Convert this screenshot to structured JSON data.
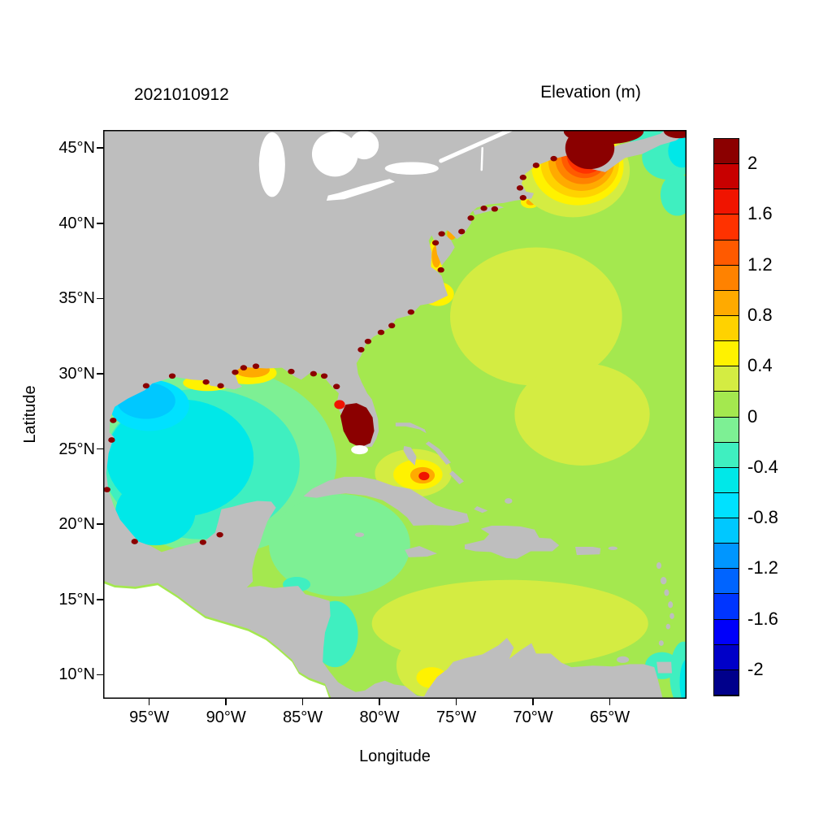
{
  "title": "2021010912",
  "colorbar_title": "Elevation (m)",
  "axes": {
    "xlabel": "Longitude",
    "ylabel": "Latitude",
    "x_ticks": [
      {
        "label": "95°W",
        "lon": -95
      },
      {
        "label": "90°W",
        "lon": -90
      },
      {
        "label": "85°W",
        "lon": -85
      },
      {
        "label": "80°W",
        "lon": -80
      },
      {
        "label": "75°W",
        "lon": -75
      },
      {
        "label": "70°W",
        "lon": -70
      },
      {
        "label": "65°W",
        "lon": -65
      }
    ],
    "y_ticks": [
      {
        "label": "45°N",
        "lat": 45
      },
      {
        "label": "40°N",
        "lat": 40
      },
      {
        "label": "35°N",
        "lat": 35
      },
      {
        "label": "30°N",
        "lat": 30
      },
      {
        "label": "25°N",
        "lat": 25
      },
      {
        "label": "20°N",
        "lat": 20
      },
      {
        "label": "15°N",
        "lat": 15
      },
      {
        "label": "10°N",
        "lat": 10
      }
    ]
  },
  "colorbar": {
    "min": -2.2,
    "max": 2.2,
    "band_step": 0.2,
    "colors_bottom_to_top": [
      "#00008B",
      "#0000C8",
      "#0000FA",
      "#0035FF",
      "#0064FF",
      "#0096FF",
      "#00C8FF",
      "#00E1FF",
      "#00E8E8",
      "#3FEFC0",
      "#7DF094",
      "#A4E84F",
      "#D4EC42",
      "#FFF200",
      "#FFD200",
      "#FFAA00",
      "#FF8200",
      "#FF5A00",
      "#FF3200",
      "#F01400",
      "#C80000",
      "#8B0000"
    ],
    "tick_labels": [
      {
        "label": "2",
        "value": 2.0
      },
      {
        "label": "1.6",
        "value": 1.6
      },
      {
        "label": "1.2",
        "value": 1.2
      },
      {
        "label": "0.8",
        "value": 0.8
      },
      {
        "label": "0.4",
        "value": 0.4
      },
      {
        "label": "0",
        "value": 0
      },
      {
        "label": "-0.4",
        "value": -0.4
      },
      {
        "label": "-0.8",
        "value": -0.8
      },
      {
        "label": "-1.2",
        "value": -1.2
      },
      {
        "label": "-1.6",
        "value": -1.6
      },
      {
        "label": "-2",
        "value": -2.0
      }
    ]
  },
  "chart_data": {
    "type": "heatmap",
    "title": "2021010912",
    "variable": "Elevation",
    "units": "m",
    "xlabel": "Longitude",
    "ylabel": "Latitude",
    "lon_range": [
      -98,
      -60
    ],
    "lat_range": [
      8.4,
      46.2
    ],
    "level_min": -2.2,
    "level_max": 2.2,
    "level_step": 0.2,
    "background_value_m": 0.1,
    "land_color": "#BEBEBE",
    "lake_color": "#FFFFFF",
    "no_data_color": "#FFFFFF",
    "regions_under": [
      {
        "name": "caribbean-yellow-band",
        "lon": -71.5,
        "lat": 13.4,
        "rx": 9.0,
        "ry": 2.9,
        "v": 0.3
      },
      {
        "name": "colombia-basin-yellow",
        "lon": -76.3,
        "lat": 10.6,
        "rx": 2.6,
        "ry": 2.2,
        "v": 0.3
      },
      {
        "name": "colombia-coast-yellow",
        "lon": -76.6,
        "lat": 9.8,
        "rx": 1.0,
        "ry": 0.7,
        "v": 0.5
      },
      {
        "name": "midatlantic-yellow",
        "lon": -69.8,
        "lat": 33.8,
        "rx": 5.6,
        "ry": 4.6,
        "v": 0.3
      },
      {
        "name": "sargasso-yellow",
        "lon": -66.8,
        "lat": 27.3,
        "rx": 4.4,
        "ry": 3.4,
        "v": 0.3
      },
      {
        "name": "gulf-light-green-rim",
        "lon": -90.6,
        "lat": 24.2,
        "rx": 7.8,
        "ry": 6.2,
        "v": -0.1
      },
      {
        "name": "nw-caribbean-light-green",
        "lon": -82.6,
        "lat": 18.6,
        "rx": 4.6,
        "ry": 3.4,
        "v": -0.1
      },
      {
        "name": "gulf-turquoise",
        "lon": -91.6,
        "lat": 24.0,
        "rx": 6.4,
        "ry": 5.0,
        "v": -0.3
      },
      {
        "name": "gulf-cyan",
        "lon": -93.0,
        "lat": 24.4,
        "rx": 4.8,
        "ry": 3.9,
        "v": -0.5
      },
      {
        "name": "campeche-cyan",
        "lon": -94.6,
        "lat": 20.8,
        "rx": 2.6,
        "ry": 2.2,
        "v": -0.5
      },
      {
        "name": "texas-shelf-blue-ring",
        "lon": -95.0,
        "lat": 27.9,
        "rx": 2.6,
        "ry": 1.7,
        "v": -0.7
      },
      {
        "name": "texas-shelf-blue",
        "lon": -95.2,
        "lat": 28.2,
        "rx": 1.9,
        "ry": 1.2,
        "v": -0.9
      },
      {
        "name": "louisiana-yellow-fringe",
        "lon": -91.2,
        "lat": 29.4,
        "rx": 1.6,
        "ry": 0.55,
        "v": 0.5
      },
      {
        "name": "mobile-yellow",
        "lon": -88.6,
        "lat": 30.05,
        "rx": 1.9,
        "ry": 0.75,
        "v": 0.5
      },
      {
        "name": "mobile-orange",
        "lon": -88.3,
        "lat": 30.25,
        "rx": 1.15,
        "ry": 0.5,
        "v": 0.9
      },
      {
        "name": "nicaragua-turquoise",
        "lon": -82.9,
        "lat": 12.7,
        "rx": 1.5,
        "ry": 2.2,
        "v": -0.3
      },
      {
        "name": "honduras-turquoise",
        "lon": -85.4,
        "lat": 16.0,
        "rx": 0.9,
        "ry": 0.5,
        "v": -0.3
      },
      {
        "name": "bahamas-yellow-halo",
        "lon": -77.8,
        "lat": 23.4,
        "rx": 2.5,
        "ry": 1.6,
        "v": 0.3
      },
      {
        "name": "bahamas-yellow",
        "lon": -77.5,
        "lat": 23.3,
        "rx": 1.6,
        "ry": 1.0,
        "v": 0.5
      },
      {
        "name": "bahamas-orange",
        "lon": -77.2,
        "lat": 23.25,
        "rx": 0.8,
        "ry": 0.55,
        "v": 0.9
      },
      {
        "name": "bahamas-red",
        "lon": -77.1,
        "lat": 23.2,
        "rx": 0.35,
        "ry": 0.28,
        "v": 1.7
      },
      {
        "name": "pamlico-yellow",
        "lon": -76.2,
        "lat": 35.3,
        "rx": 1.05,
        "ry": 0.8,
        "v": 0.5
      },
      {
        "name": "pamlico-orange",
        "lon": -76.5,
        "lat": 35.3,
        "rx": 0.45,
        "ry": 0.35,
        "v": 0.9
      },
      {
        "name": "chesapeake-yellow",
        "lon": -76.3,
        "lat": 37.9,
        "rx": 0.5,
        "ry": 1.1,
        "v": 0.5
      },
      {
        "name": "chesapeake-orange",
        "lon": -76.3,
        "lat": 37.8,
        "rx": 0.3,
        "ry": 0.75,
        "v": 0.9
      },
      {
        "name": "delaware-orange",
        "lon": -75.3,
        "lat": 39.3,
        "rx": 0.3,
        "ry": 0.4,
        "v": 0.9
      },
      {
        "name": "nantucket-yellow",
        "lon": -70.2,
        "lat": 41.4,
        "rx": 0.6,
        "ry": 0.4,
        "v": 0.5
      },
      {
        "name": "nantucket-orange",
        "lon": -70.15,
        "lat": 41.4,
        "rx": 0.3,
        "ry": 0.2,
        "v": 0.9
      },
      {
        "name": "fundy-ring-yellowgreen",
        "lon": -67.4,
        "lat": 43.5,
        "rx": 3.7,
        "ry": 3.1,
        "v": 0.3
      },
      {
        "name": "fundy-ring-yellow",
        "lon": -67.1,
        "lat": 43.8,
        "rx": 3.0,
        "ry": 2.6,
        "v": 0.5
      },
      {
        "name": "fundy-ring-amber",
        "lon": -66.95,
        "lat": 43.95,
        "rx": 2.55,
        "ry": 2.25,
        "v": 0.7
      },
      {
        "name": "fundy-ring-orange",
        "lon": -66.85,
        "lat": 44.1,
        "rx": 2.15,
        "ry": 1.95,
        "v": 0.9
      },
      {
        "name": "fundy-ring-deep-orange",
        "lon": -66.75,
        "lat": 44.25,
        "rx": 1.8,
        "ry": 1.65,
        "v": 1.1
      },
      {
        "name": "fundy-ring-orangered",
        "lon": -66.65,
        "lat": 44.4,
        "rx": 1.5,
        "ry": 1.4,
        "v": 1.3
      },
      {
        "name": "fundy-ring-red",
        "lon": -66.55,
        "lat": 44.5,
        "rx": 1.25,
        "ry": 1.2,
        "v": 1.5
      },
      {
        "name": "fundy-ring-red2",
        "lon": -66.5,
        "lat": 44.6,
        "rx": 1.05,
        "ry": 1.0,
        "v": 1.7
      },
      {
        "name": "fundy-ring-darkred",
        "lon": -66.45,
        "lat": 44.7,
        "rx": 0.9,
        "ry": 0.9,
        "v": 1.9
      },
      {
        "name": "scotian-shelf-turquoise",
        "lon": -61.2,
        "lat": 44.4,
        "rx": 1.7,
        "ry": 1.5,
        "v": -0.3
      },
      {
        "name": "scotian-shelf-cyan",
        "lon": -60.3,
        "lat": 44.8,
        "rx": 0.9,
        "ry": 1.1,
        "v": -0.5
      },
      {
        "name": "gulf-stlawrence-turquoise",
        "lon": -62.6,
        "lat": 46.0,
        "rx": 1.4,
        "ry": 0.9,
        "v": -0.3
      },
      {
        "name": "georges-bank-turquoise",
        "lon": -60.6,
        "lat": 41.9,
        "rx": 1.1,
        "ry": 1.4,
        "v": -0.3
      },
      {
        "name": "trinidad-turquoise",
        "lon": -61.6,
        "lat": 10.6,
        "rx": 1.1,
        "ry": 0.9,
        "v": -0.3
      },
      {
        "name": "guyana-turquoise",
        "lon": -60.2,
        "lat": 10.0,
        "rx": 0.9,
        "ry": 2.2,
        "v": -0.3
      },
      {
        "name": "guyana-cyan-edge",
        "lon": -60.0,
        "lat": 9.5,
        "rx": 0.45,
        "ry": 1.5,
        "v": -0.5
      }
    ],
    "regions_over": [
      {
        "name": "fundy-maroon-core",
        "lon": -66.3,
        "lat": 45.0,
        "rx": 1.6,
        "ry": 1.4,
        "v": 2.1
      },
      {
        "name": "fundy-maroon-top",
        "lon": -65.4,
        "lat": 46.1,
        "rx": 2.6,
        "ry": 0.85,
        "v": 2.1
      },
      {
        "name": "gulf-stlawrence-maroon-corner",
        "lon": -60.5,
        "lat": 46.15,
        "rx": 1.0,
        "ry": 0.5,
        "v": 2.1
      },
      {
        "name": "south-florida-maroon-blob",
        "poly": [
          [
            -82.2,
            27.95
          ],
          [
            -81.5,
            28.05
          ],
          [
            -80.85,
            27.75
          ],
          [
            -80.45,
            27.1
          ],
          [
            -80.35,
            26.2
          ],
          [
            -80.6,
            25.4
          ],
          [
            -81.25,
            25.1
          ],
          [
            -81.95,
            25.45
          ],
          [
            -82.35,
            26.2
          ],
          [
            -82.55,
            27.2
          ]
        ],
        "v": 2.1
      },
      {
        "name": "tampa-bay-red",
        "lon": -82.6,
        "lat": 27.95,
        "rx": 0.35,
        "ry": 0.3,
        "v": 1.7
      },
      {
        "name": "florida-bay-white",
        "lon": -81.3,
        "lat": 24.95,
        "rx": 0.55,
        "ry": 0.3,
        "color": "#FFFFFF"
      }
    ],
    "coastal_high_spots": [
      [
        -81.2,
        31.6
      ],
      [
        -80.75,
        32.15
      ],
      [
        -79.9,
        32.75
      ],
      [
        -79.2,
        33.2
      ],
      [
        -77.95,
        34.1
      ],
      [
        -76.0,
        36.9
      ],
      [
        -76.35,
        38.7
      ],
      [
        -75.95,
        39.3
      ],
      [
        -74.65,
        39.45
      ],
      [
        -74.05,
        40.35
      ],
      [
        -73.2,
        41.0
      ],
      [
        -72.5,
        40.95
      ],
      [
        -70.65,
        41.7
      ],
      [
        -70.85,
        42.35
      ],
      [
        -70.65,
        43.05
      ],
      [
        -69.8,
        43.85
      ],
      [
        -68.65,
        44.3
      ],
      [
        -97.35,
        26.9
      ],
      [
        -97.45,
        25.6
      ],
      [
        -95.2,
        29.2
      ],
      [
        -93.5,
        29.85
      ],
      [
        -91.3,
        29.45
      ],
      [
        -90.35,
        29.2
      ],
      [
        -89.4,
        30.1
      ],
      [
        -88.85,
        30.4
      ],
      [
        -88.05,
        30.5
      ],
      [
        -85.75,
        30.15
      ],
      [
        -84.3,
        30.0
      ],
      [
        -83.6,
        29.85
      ],
      [
        -82.8,
        29.15
      ],
      [
        -97.75,
        22.3
      ],
      [
        -95.95,
        18.85
      ],
      [
        -91.5,
        18.8
      ],
      [
        -90.4,
        19.3
      ]
    ]
  }
}
